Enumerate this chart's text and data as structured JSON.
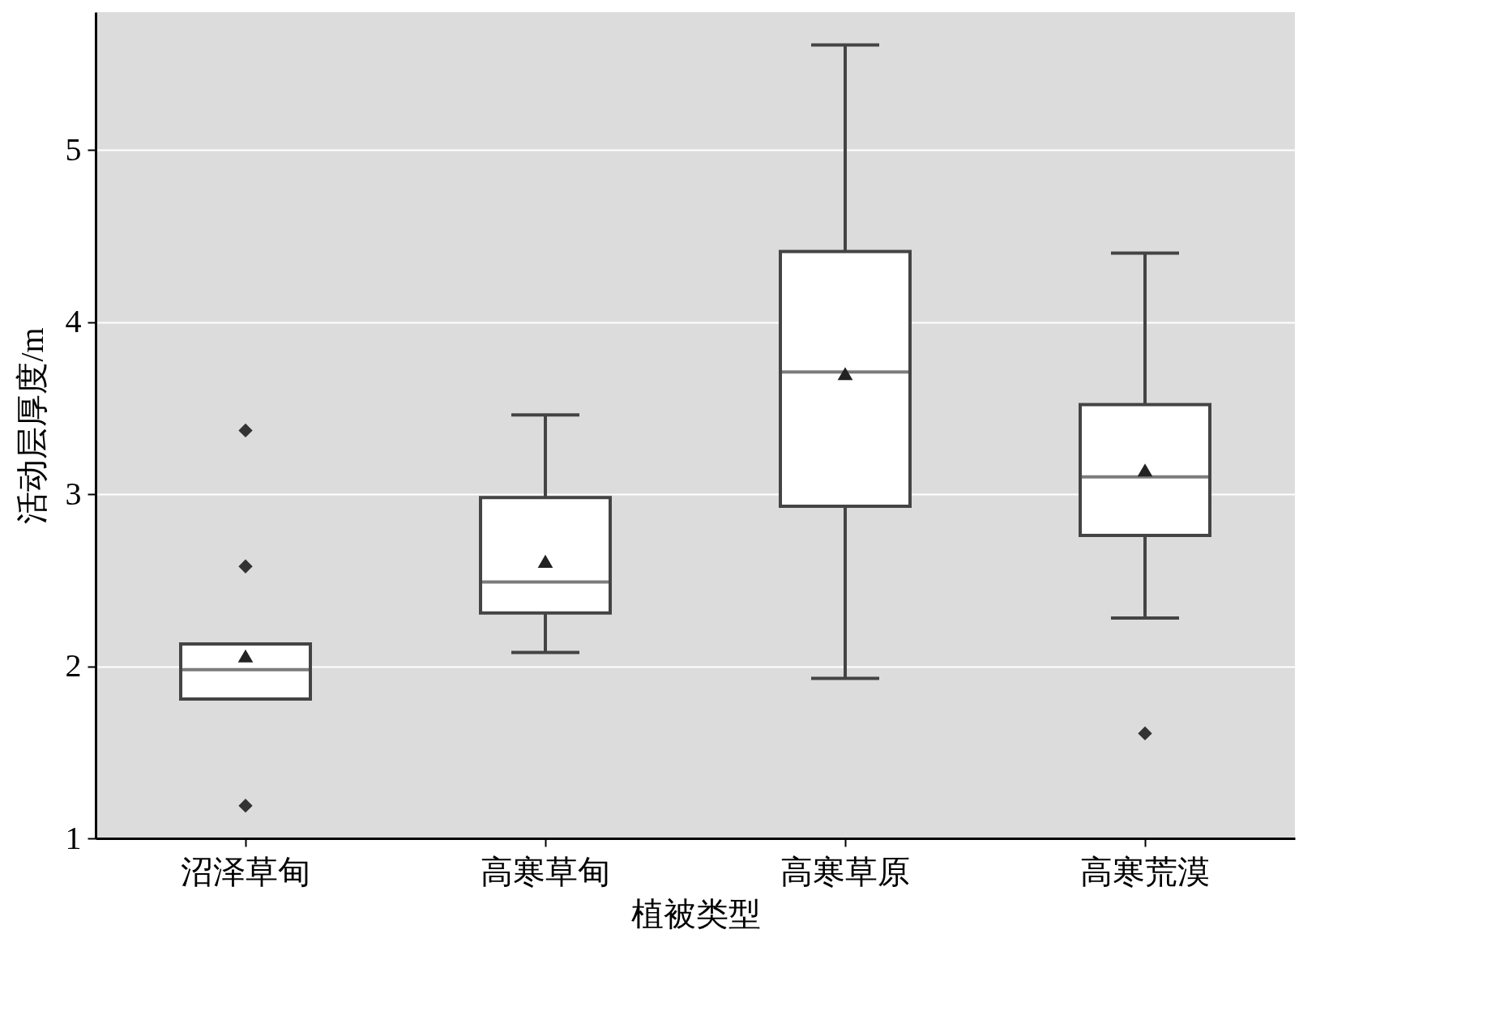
{
  "chart_data": {
    "type": "box",
    "xlabel": "植被类型",
    "ylabel": "活动层厚度/m",
    "categories": [
      "沼泽草甸",
      "高寒草甸",
      "高寒草原",
      "高寒荒漠"
    ],
    "boxes": [
      {
        "low": 1.81,
        "q1": 1.81,
        "median": 1.98,
        "q3": 2.13,
        "high": 2.13,
        "mean": 2.06,
        "outliers": [
          3.37,
          2.58,
          1.19
        ]
      },
      {
        "low": 2.08,
        "q1": 2.31,
        "median": 2.49,
        "q3": 2.98,
        "high": 3.46,
        "mean": 2.61
      },
      {
        "low": 1.93,
        "q1": 2.93,
        "median": 3.71,
        "q3": 4.41,
        "high": 5.61,
        "mean": 3.7
      },
      {
        "low": 2.28,
        "q1": 2.76,
        "median": 3.1,
        "q3": 3.52,
        "high": 4.4,
        "mean": 3.14,
        "outliers": [
          1.61
        ]
      }
    ],
    "ylim": [
      1,
      5.8
    ],
    "yticks": [
      1,
      2,
      3,
      4,
      5
    ],
    "grid": "y"
  }
}
